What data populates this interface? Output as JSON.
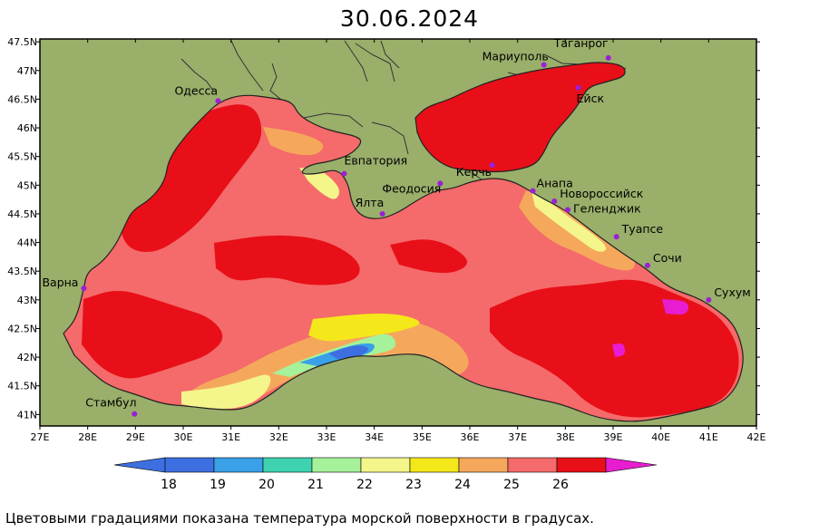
{
  "title": "30.06.2024",
  "caption": "Цветовыми градациями показана температура морской поверхности в градусах.",
  "colors": {
    "land": "#9aaf6a",
    "coast": "#222222",
    "t18": "#3d6fe0",
    "t19": "#3aa0e8",
    "t20": "#3ed2b0",
    "t21": "#a6f29a",
    "t22": "#f4f58a",
    "t23": "#f5e81a",
    "t24": "#f5a85c",
    "t25": "#f56a6a",
    "t26": "#e80f18",
    "t27": "#e81cd0",
    "city_dot": "#9a1fd6"
  },
  "x_ticks": [
    "27E",
    "28E",
    "29E",
    "30E",
    "31E",
    "32E",
    "33E",
    "34E",
    "35E",
    "36E",
    "37E",
    "38E",
    "39E",
    "40E",
    "41E",
    "42E"
  ],
  "y_ticks": [
    "47.5N",
    "47N",
    "46.5N",
    "46N",
    "45.5N",
    "45N",
    "44.5N",
    "44N",
    "43.5N",
    "43N",
    "42.5N",
    "42N",
    "41.5N",
    "41N"
  ],
  "cities": [
    {
      "name": "Одесса",
      "lon": 30.73,
      "lat": 46.47
    },
    {
      "name": "Мариуполь",
      "lon": 37.55,
      "lat": 47.1
    },
    {
      "name": "Таганрог",
      "lon": 38.9,
      "lat": 47.22
    },
    {
      "name": "Ейск",
      "lon": 38.27,
      "lat": 46.7
    },
    {
      "name": "Евпатория",
      "lon": 33.37,
      "lat": 45.2
    },
    {
      "name": "Феодосия",
      "lon": 35.38,
      "lat": 45.03
    },
    {
      "name": "Керчь",
      "lon": 36.47,
      "lat": 45.35
    },
    {
      "name": "Анапа",
      "lon": 37.32,
      "lat": 44.9
    },
    {
      "name": "Новороссийск",
      "lon": 37.77,
      "lat": 44.72
    },
    {
      "name": "Геленджик",
      "lon": 38.05,
      "lat": 44.57
    },
    {
      "name": "Ялта",
      "lon": 34.17,
      "lat": 44.5
    },
    {
      "name": "Туапсе",
      "lon": 39.07,
      "lat": 44.1
    },
    {
      "name": "Сочи",
      "lon": 39.72,
      "lat": 43.6
    },
    {
      "name": "Сухум",
      "lon": 41.0,
      "lat": 43.0
    },
    {
      "name": "Варна",
      "lon": 27.92,
      "lat": 43.2
    },
    {
      "name": "Стамбул",
      "lon": 28.98,
      "lat": 41.01
    }
  ],
  "colorbar_labels": [
    "18",
    "19",
    "20",
    "21",
    "22",
    "23",
    "24",
    "25",
    "26"
  ]
}
